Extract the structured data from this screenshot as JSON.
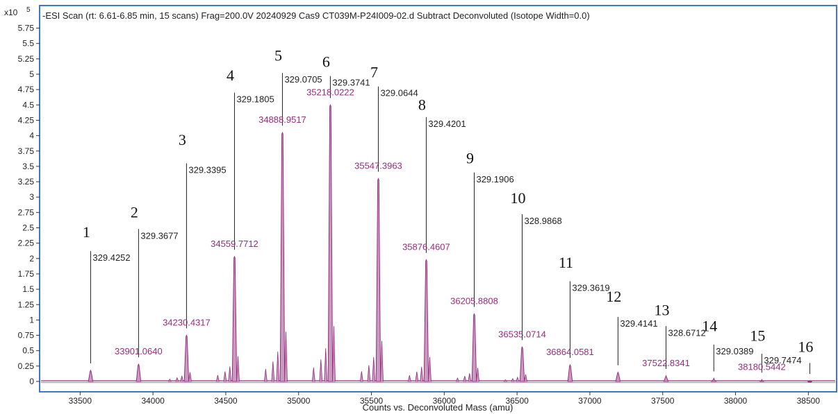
{
  "chart_data": {
    "type": "area",
    "title": "-ESI Scan (rt: 6.61-6.85 min, 15 scans) Frag=200.0V 20240929 Cas9 CT039M-P24I009-02.d  Subtract Deconvoluted (Isotope Width=0.0)",
    "scale_label": "x10",
    "scale_exponent": "5",
    "xlabel": "Counts vs. Deconvoluted Mass (amu)",
    "ylabel": "",
    "xlim": [
      33200,
      38700
    ],
    "ylim": [
      -0.1,
      5.9
    ],
    "x_ticks": [
      "33500",
      "34000",
      "34500",
      "35000",
      "35500",
      "36000",
      "36500",
      "37000",
      "37500",
      "38000",
      "38500"
    ],
    "x_tick_values": [
      33500,
      34000,
      34500,
      35000,
      35500,
      36000,
      36500,
      37000,
      37500,
      38000,
      38500
    ],
    "y_ticks": [
      "0",
      "0.25",
      "0.5",
      "0.75",
      "1",
      "1.25",
      "1.5",
      "1.75",
      "2",
      "2.25",
      "2.5",
      "2.75",
      "3",
      "3.25",
      "3.5",
      "3.75",
      "4",
      "4.25",
      "4.5",
      "4.75",
      "5",
      "5.25",
      "5.5",
      "5.75"
    ],
    "y_tick_values": [
      0,
      0.25,
      0.5,
      0.75,
      1,
      1.25,
      1.5,
      1.75,
      2,
      2.25,
      2.5,
      2.75,
      3,
      3.25,
      3.5,
      3.75,
      4,
      4.25,
      4.5,
      4.75,
      5,
      5.25,
      5.5,
      5.75
    ],
    "series_color": "#9a2a7e",
    "fill_color": "#c99bc0",
    "peaks": [
      {
        "n": "1",
        "mass": 33572.0,
        "intensity": 0.18,
        "mass_label": "",
        "delta": "329.4252",
        "line_top": 2.12,
        "num_y": 2.35
      },
      {
        "n": "2",
        "mass": 33901.064,
        "intensity": 0.28,
        "mass_label": "33901.0640",
        "delta": "329.3677",
        "line_top": 2.48,
        "num_y": 2.67
      },
      {
        "n": "3",
        "mass": 34230.4317,
        "intensity": 0.75,
        "mass_label": "34230.4317",
        "delta": "329.3395",
        "line_top": 3.55,
        "num_y": 3.85
      },
      {
        "n": "4",
        "mass": 34559.7712,
        "intensity": 2.03,
        "mass_label": "34559.7712",
        "delta": "329.1805",
        "line_top": 4.7,
        "num_y": 4.9
      },
      {
        "n": "5",
        "mass": 34888.9517,
        "intensity": 4.05,
        "mass_label": "34888.9517",
        "delta": "329.0705",
        "line_top": 5.02,
        "num_y": 5.22
      },
      {
        "n": "6",
        "mass": 35218.0222,
        "intensity": 4.5,
        "mass_label": "35218.0222",
        "delta": "329.3741",
        "line_top": 4.97,
        "num_y": 5.12
      },
      {
        "n": "7",
        "mass": 35547.3963,
        "intensity": 3.3,
        "mass_label": "35547.3963",
        "delta": "329.0644",
        "line_top": 4.8,
        "num_y": 4.95
      },
      {
        "n": "8",
        "mass": 35876.4607,
        "intensity": 1.98,
        "mass_label": "35876.4607",
        "delta": "329.4201",
        "line_top": 4.3,
        "num_y": 4.42
      },
      {
        "n": "9",
        "mass": 36205.8808,
        "intensity": 1.1,
        "mass_label": "36205.8808",
        "delta": "329.1906",
        "line_top": 3.4,
        "num_y": 3.55
      },
      {
        "n": "10",
        "mass": 36535.0714,
        "intensity": 0.56,
        "mass_label": "36535.0714",
        "delta": "328.9868",
        "line_top": 2.72,
        "num_y": 2.9
      },
      {
        "n": "11",
        "mass": 36864.0581,
        "intensity": 0.27,
        "mass_label": "36864.0581",
        "delta": "329.3619",
        "line_top": 1.63,
        "num_y": 1.85
      },
      {
        "n": "12",
        "mass": 37193.0,
        "intensity": 0.15,
        "mass_label": "",
        "delta": "329.4141",
        "line_top": 1.05,
        "num_y": 1.3
      },
      {
        "n": "13",
        "mass": 37522.8341,
        "intensity": 0.09,
        "mass_label": "37522.8341",
        "delta": "328.6712",
        "line_top": 0.9,
        "num_y": 1.08
      },
      {
        "n": "14",
        "mass": 37851.0,
        "intensity": 0.05,
        "mass_label": "",
        "delta": "329.0389",
        "line_top": 0.6,
        "num_y": 0.82
      },
      {
        "n": "15",
        "mass": 38180.5442,
        "intensity": 0.03,
        "mass_label": "38180.5442",
        "delta": "329.7474",
        "line_top": 0.45,
        "num_y": 0.66
      },
      {
        "n": "16",
        "mass": 38510.0,
        "intensity": 0.01,
        "mass_label": "",
        "delta": "",
        "line_top": 0.3,
        "num_y": 0.48
      }
    ]
  }
}
